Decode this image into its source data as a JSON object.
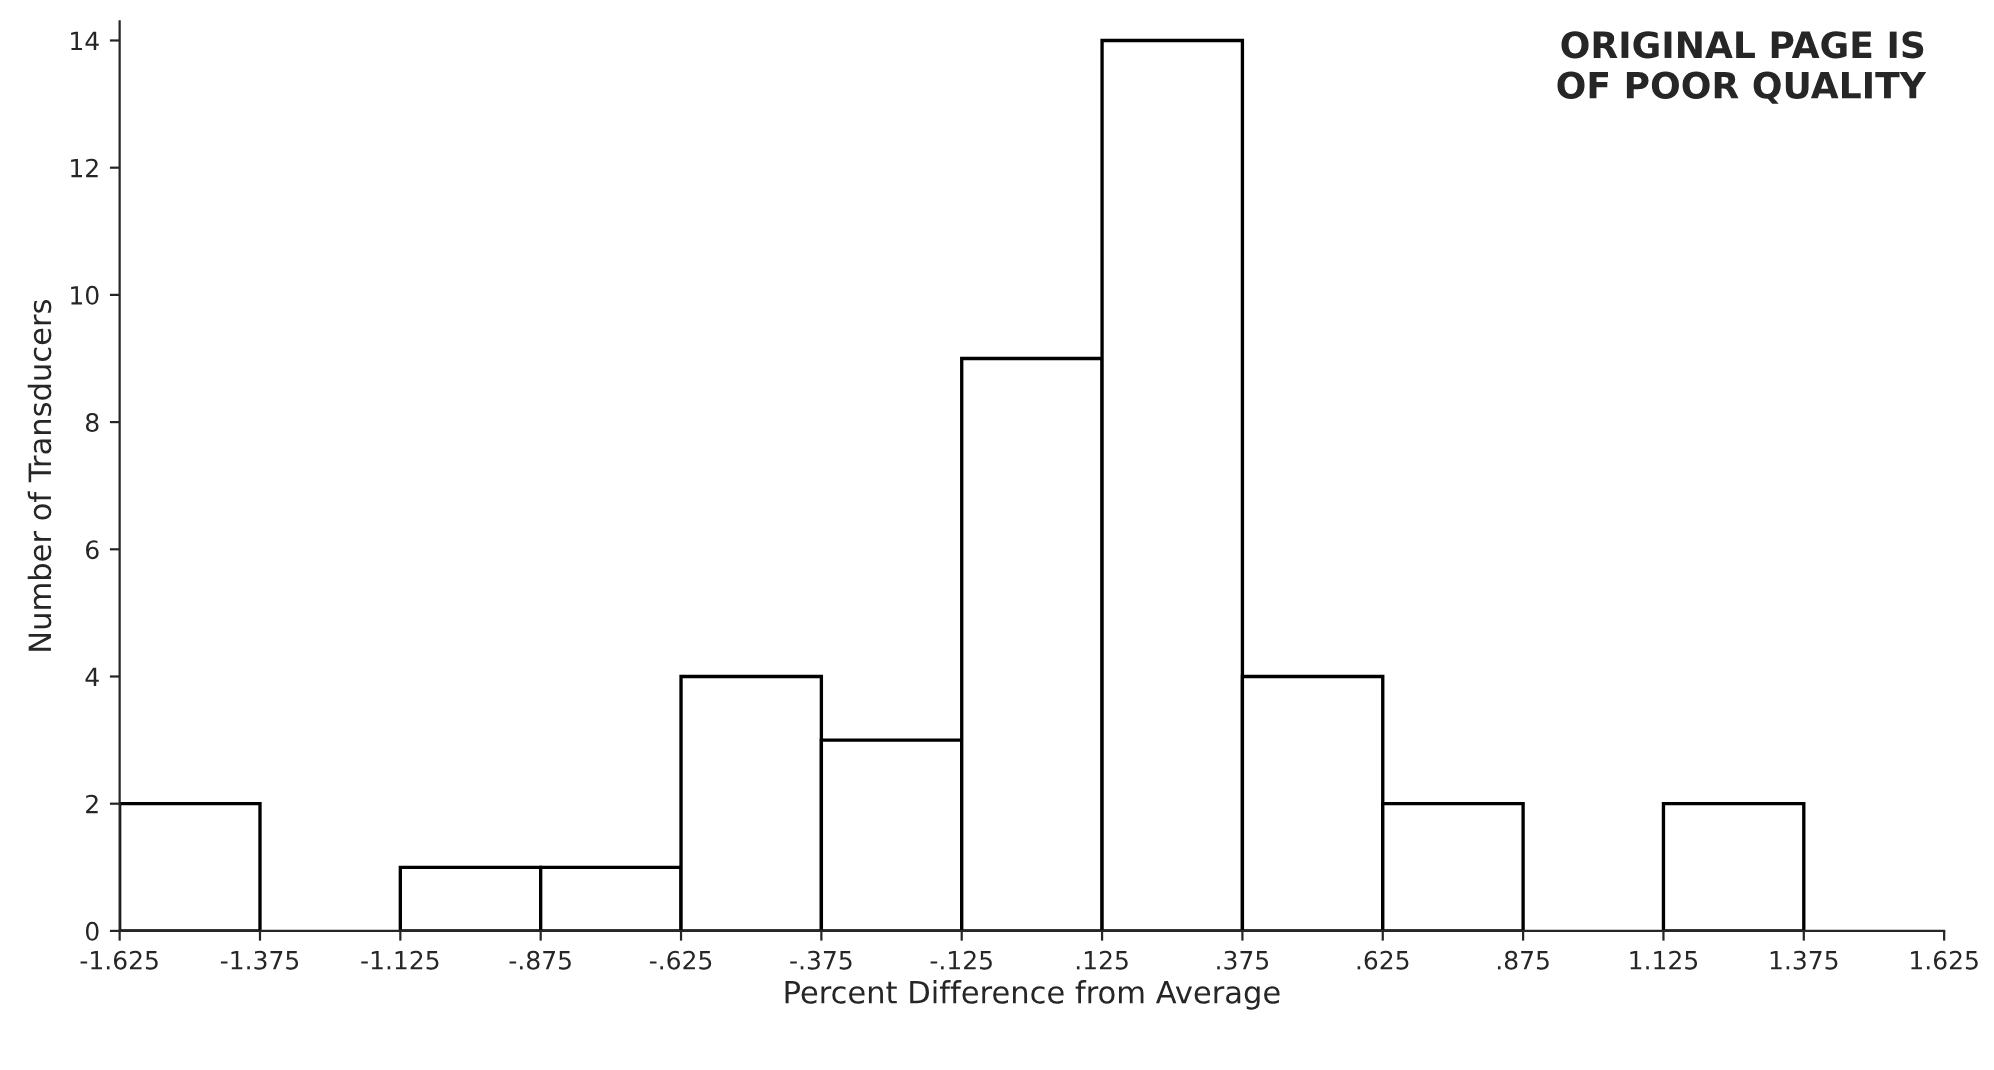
{
  "chart_data": {
    "type": "histogram",
    "xlabel": "Percent Difference from Average",
    "ylabel": "Number of Transducers",
    "annotations": [
      "ORIGINAL PAGE IS\nOF POOR QUALITY"
    ],
    "bins": [
      -1.625,
      -1.375,
      -1.125,
      -0.875,
      -0.625,
      -0.375,
      -0.125,
      0.125,
      0.375,
      0.625,
      0.875,
      1.125,
      1.375,
      1.625
    ],
    "values": [
      2,
      0,
      1,
      1,
      4,
      3,
      9,
      14,
      4,
      2,
      0,
      2,
      0
    ],
    "color": "#ffffff",
    "xlim": [
      -1.625,
      1.625
    ],
    "xticks": [
      {
        "value": -1.625,
        "label": "-1.625"
      },
      {
        "value": -1.375,
        "label": "-1.375"
      },
      {
        "value": -1.125,
        "label": "-1.125"
      },
      {
        "value": -0.875,
        "label": "-.875"
      },
      {
        "value": -0.625,
        "label": "-.625"
      },
      {
        "value": -0.375,
        "label": "-.375"
      },
      {
        "value": -0.125,
        "label": "-.125"
      },
      {
        "value": 0.125,
        "label": ".125"
      },
      {
        "value": 0.375,
        "label": ".375"
      },
      {
        "value": 0.625,
        "label": ".625"
      },
      {
        "value": 0.875,
        "label": ".875"
      },
      {
        "value": 1.125,
        "label": "1.125"
      },
      {
        "value": 1.375,
        "label": "1.375"
      },
      {
        "value": 1.625,
        "label": "1.625"
      }
    ],
    "ylim": [
      0,
      14.3
    ],
    "yticks": [
      0,
      2,
      4,
      6,
      8,
      10,
      12,
      14
    ],
    "grid": false
  }
}
